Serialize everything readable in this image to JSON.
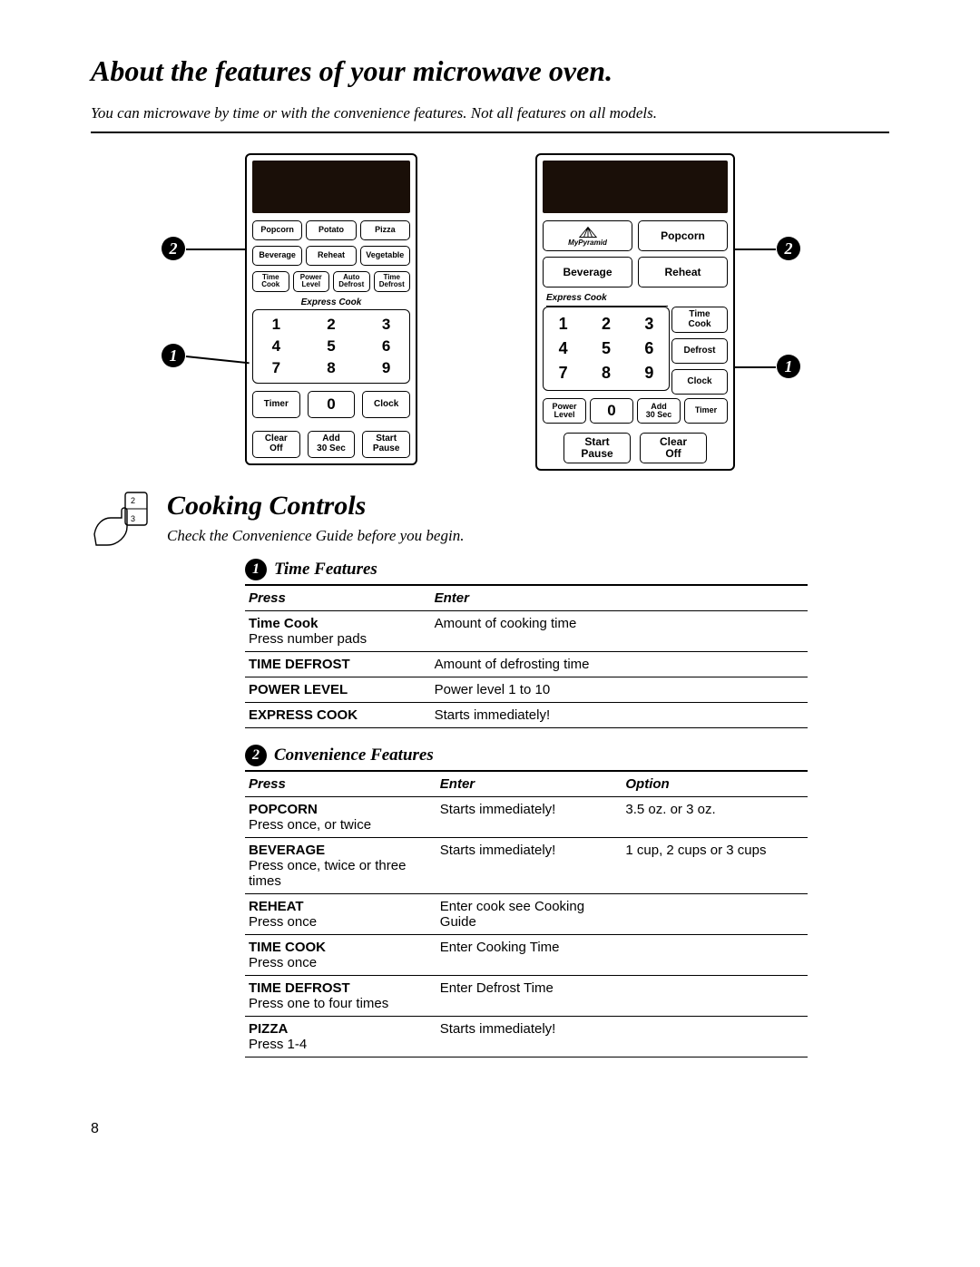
{
  "page": {
    "title": "About the features of your microwave oven.",
    "subtitle": "You can microwave by time or with the convenience features.  Not all features on all models.",
    "number": "8"
  },
  "callouts": {
    "one": "1",
    "two": "2"
  },
  "panel1": {
    "row1": [
      "Popcorn",
      "Potato",
      "Pizza"
    ],
    "row2": [
      "Beverage",
      "Reheat",
      "Vegetable"
    ],
    "row3": [
      "Time\nCook",
      "Power\nLevel",
      "Auto\nDefrost",
      "Time\nDefrost"
    ],
    "express_label": "Express Cook",
    "numpad": [
      "1",
      "2",
      "3",
      "4",
      "5",
      "6",
      "7",
      "8",
      "9"
    ],
    "row_bottom1": [
      "Timer",
      "0",
      "Clock"
    ],
    "row_bottom2": [
      "Clear\nOff",
      "Add\n30 Sec",
      "Start\nPause"
    ]
  },
  "panel2": {
    "pyramid_label": "MyPyramid",
    "row1": [
      "Popcorn"
    ],
    "row2": [
      "Beverage",
      "Reheat"
    ],
    "express_label": "Express Cook",
    "numpad": [
      "1",
      "2",
      "3",
      "4",
      "5",
      "6",
      "7",
      "8",
      "9"
    ],
    "side": [
      "Time\nCook",
      "Defrost",
      "Clock"
    ],
    "bot": [
      "Power\nLevel",
      "0",
      "Add\n30 Sec",
      "Timer"
    ],
    "bot2": [
      "Start\nPause",
      "Clear\nOff"
    ]
  },
  "cooking_controls": {
    "title": "Cooking Controls",
    "subtitle": "Check the Convenience Guide before you begin."
  },
  "time_features": {
    "title": "Time Features",
    "bullet": "1",
    "headers": [
      "Press",
      "Enter"
    ],
    "rows": [
      {
        "press": "Time Cook",
        "press_sub": "Press number pads",
        "enter": "Amount of cooking time"
      },
      {
        "press": "TIME DEFROST",
        "enter": "Amount of defrosting time"
      },
      {
        "press": "POWER LEVEL",
        "enter": "Power level 1 to 10"
      },
      {
        "press": "EXPRESS COOK",
        "enter": "Starts immediately!"
      }
    ]
  },
  "conv_features": {
    "title": "Convenience Features",
    "bullet": "2",
    "headers": [
      "Press",
      "Enter",
      "Option"
    ],
    "rows": [
      {
        "press": "POPCORN",
        "press_sub": "Press once, or twice",
        "enter": "Starts immediately!",
        "option": "3.5 oz. or 3 oz."
      },
      {
        "press": "BEVERAGE",
        "press_sub": "Press once, twice or three times",
        "enter": "Starts immediately!",
        "option": "1 cup, 2 cups or 3 cups"
      },
      {
        "press": "REHEAT",
        "press_sub": "Press once",
        "enter": "Enter cook see Cooking Guide",
        "option": ""
      },
      {
        "press": "TIME COOK",
        "press_sub": "Press once",
        "enter": "Enter Cooking Time",
        "option": ""
      },
      {
        "press": "TIME DEFROST",
        "press_sub": "Press one to four times",
        "enter": "Enter Defrost Time",
        "option": ""
      },
      {
        "press": "PIZZA",
        "press_sub": "Press 1-4",
        "enter": "Starts immediately!",
        "option": ""
      }
    ]
  }
}
